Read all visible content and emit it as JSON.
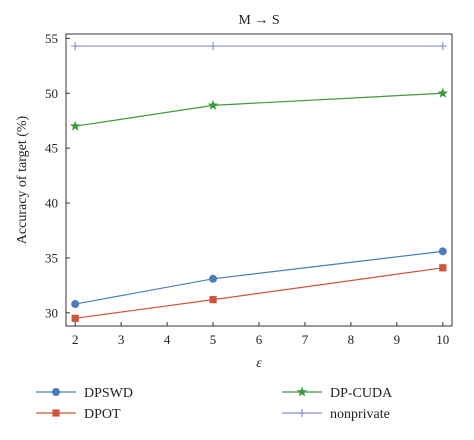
{
  "chart_data": {
    "type": "line",
    "title": "M → S",
    "xlabel": "ε",
    "ylabel": "Accuracy of target (%)",
    "xlim": [
      1.8,
      10.2
    ],
    "ylim": [
      28.8,
      55.4
    ],
    "xticks": [
      2,
      3,
      4,
      5,
      6,
      7,
      8,
      9,
      10
    ],
    "yticks": [
      30,
      35,
      40,
      45,
      50,
      55
    ],
    "x": [
      2,
      5,
      10
    ],
    "series": [
      {
        "name": "DPSWD",
        "color": "#4a7ebb",
        "marker": "circle",
        "values": [
          30.8,
          33.1,
          35.6
        ]
      },
      {
        "name": "DPOT",
        "color": "#d0533a",
        "marker": "square",
        "values": [
          29.5,
          31.2,
          34.1
        ]
      },
      {
        "name": "DP-CUDA",
        "color": "#3d9a3d",
        "marker": "star",
        "values": [
          47.0,
          48.9,
          50.0
        ]
      },
      {
        "name": "nonprivate",
        "color": "#8a8fd6",
        "marker": "plus",
        "values": [
          54.3,
          54.3,
          54.3
        ]
      }
    ],
    "legend": {
      "placement": "bottom",
      "columns": 2,
      "order": [
        "DPSWD",
        "DP-CUDA",
        "DPOT",
        "nonprivate"
      ]
    },
    "grid": false
  }
}
